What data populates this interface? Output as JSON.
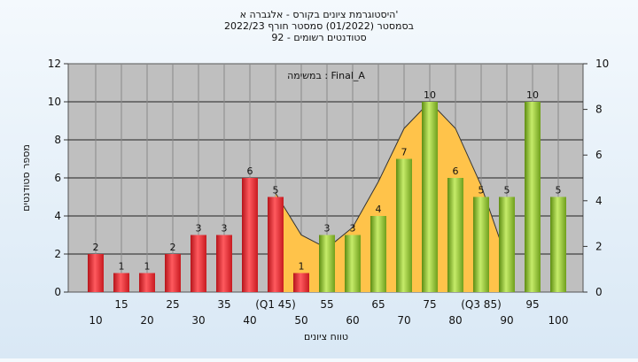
{
  "header": {
    "title_lines": [
      "היסטוגרמת ציונים בקורס - אלגברה א'",
      "בסמסטר  (01/2022)  סמסטר חורף  2022/23",
      "92 - סטודנטים רשומים"
    ]
  },
  "chart_data": {
    "type": "bar",
    "x": [
      10,
      15,
      20,
      25,
      30,
      35,
      40,
      45,
      50,
      55,
      60,
      65,
      70,
      75,
      80,
      85,
      90,
      95,
      100
    ],
    "x_tick_labels": [
      "10",
      "15",
      "20",
      "25",
      "30",
      "35",
      "40",
      "(Q1 45)",
      "50",
      "55",
      "60",
      "65",
      "70",
      "75",
      "80",
      "(Q3 85)",
      "90",
      "95",
      "100"
    ],
    "values": [
      2,
      1,
      1,
      2,
      3,
      3,
      6,
      5,
      1,
      3,
      3,
      4,
      7,
      10,
      6,
      5,
      5,
      10,
      5
    ],
    "bar_status": [
      "fail",
      "fail",
      "fail",
      "fail",
      "fail",
      "fail",
      "fail",
      "fail",
      "fail",
      "pass",
      "pass",
      "pass",
      "pass",
      "pass",
      "pass",
      "pass",
      "pass",
      "pass",
      "pass"
    ],
    "curve": {
      "x": [
        45,
        50,
        55,
        60,
        65,
        70,
        75,
        80,
        85,
        90
      ],
      "y": [
        5.2,
        3.0,
        2.3,
        3.4,
        5.8,
        8.6,
        10.0,
        8.6,
        5.6,
        1.7
      ]
    },
    "xlabel": "טווח ציונים",
    "ylabel": "מספר סטודנטים",
    "ylim": [
      0,
      12
    ],
    "yticks": [
      0,
      2,
      4,
      6,
      8,
      10,
      12
    ],
    "y2lim": [
      0,
      10
    ],
    "y2ticks": [
      0,
      2,
      4,
      6,
      8,
      10
    ],
    "annotation": "במשימה : Final_A",
    "grid": true,
    "colors": {
      "fail": "#e8262c",
      "pass": "#8cbf2a",
      "curve_fill": "#ffc34a",
      "curve_line": "#333333",
      "plot_bg": "#bfbfbf"
    }
  }
}
